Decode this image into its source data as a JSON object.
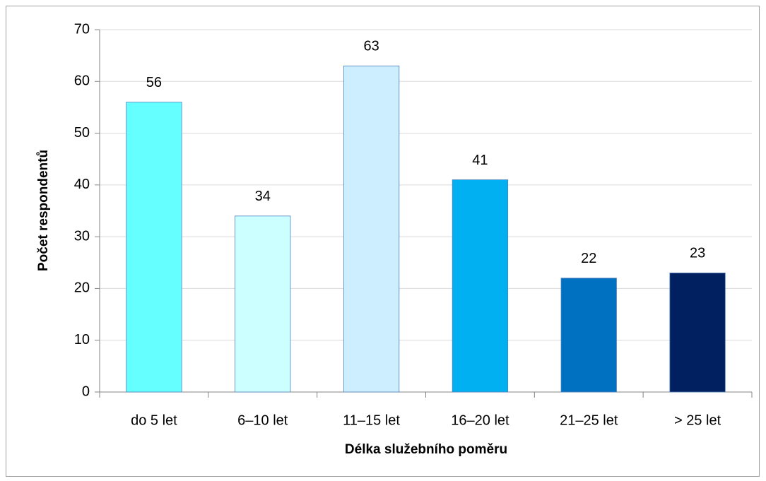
{
  "chart_data": {
    "type": "bar",
    "categories": [
      "do 5 let",
      "6–10 let",
      "11–15 let",
      "16–20 let",
      "21–25 let",
      "> 25 let"
    ],
    "values": [
      56,
      34,
      63,
      41,
      22,
      23
    ],
    "colors": [
      "#66ffff",
      "#ccffff",
      "#cceeff",
      "#00b0f0",
      "#0070c0",
      "#002060"
    ],
    "xlabel": "Délka služebního poměru",
    "ylabel": "Počet respondentů",
    "ylim": [
      0,
      70
    ],
    "yticks": [
      0,
      10,
      20,
      30,
      40,
      50,
      60,
      70
    ],
    "grid": true
  }
}
